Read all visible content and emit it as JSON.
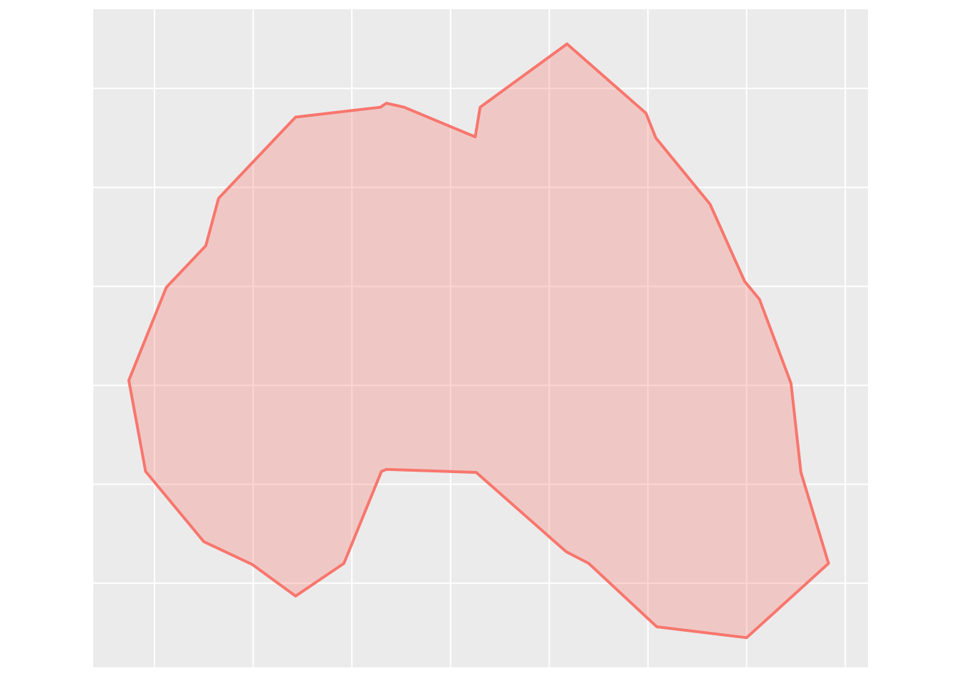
{
  "chart_data": {
    "type": "area",
    "title": "",
    "xlabel": "",
    "ylabel": "",
    "grid": true,
    "legend": "none",
    "xlim": [
      0,
      7.85
    ],
    "ylim": [
      0,
      6.65
    ],
    "x_grid_major": [
      0.62,
      1.62,
      2.62,
      3.62,
      4.62,
      5.62,
      6.62,
      7.62
    ],
    "y_grid_major": [
      0.85,
      1.85,
      2.85,
      3.85,
      4.85,
      5.85
    ],
    "series": [
      {
        "fill_color": "#F8766D",
        "fill_opacity": 0.3,
        "line_color": "#F8766D",
        "points": [
          [
            4.8,
            6.3
          ],
          [
            5.6,
            5.6
          ],
          [
            5.7,
            5.35
          ],
          [
            6.25,
            4.68
          ],
          [
            6.6,
            3.9
          ],
          [
            6.75,
            3.72
          ],
          [
            7.07,
            2.87
          ],
          [
            7.17,
            1.97
          ],
          [
            7.45,
            1.05
          ],
          [
            6.62,
            0.3
          ],
          [
            5.71,
            0.41
          ],
          [
            5.02,
            1.05
          ],
          [
            4.79,
            1.17
          ],
          [
            3.88,
            1.97
          ],
          [
            2.97,
            2.0
          ],
          [
            2.92,
            1.98
          ],
          [
            2.54,
            1.05
          ],
          [
            2.05,
            0.72
          ],
          [
            1.61,
            1.04
          ],
          [
            1.12,
            1.27
          ],
          [
            0.53,
            1.98
          ],
          [
            0.36,
            2.9
          ],
          [
            0.74,
            3.84
          ],
          [
            1.14,
            4.26
          ],
          [
            1.27,
            4.74
          ],
          [
            2.05,
            5.56
          ],
          [
            2.91,
            5.66
          ],
          [
            2.97,
            5.7
          ],
          [
            3.15,
            5.66
          ],
          [
            3.87,
            5.36
          ],
          [
            3.92,
            5.66
          ]
        ]
      }
    ]
  }
}
